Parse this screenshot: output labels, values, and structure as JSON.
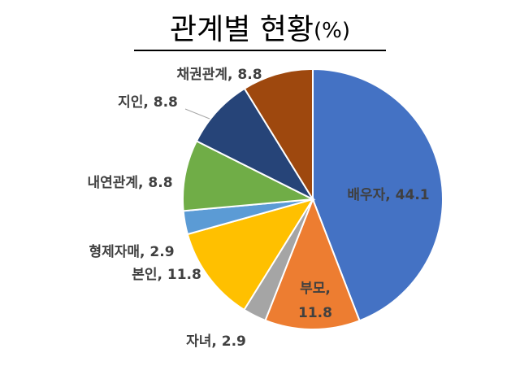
{
  "chart_data": {
    "type": "pie",
    "title": "관계별 현황(%)",
    "categories": [
      "배우자",
      "부모",
      "자녀",
      "본인",
      "형제자매",
      "내연관계",
      "지인",
      "채권관계"
    ],
    "values": [
      44.1,
      11.8,
      2.9,
      11.8,
      2.9,
      8.8,
      8.8,
      8.8
    ],
    "colors": [
      "#4472c4",
      "#ed7d31",
      "#a5a5a5",
      "#ffc000",
      "#5b9bd5",
      "#70ad47",
      "#264478",
      "#9e480e"
    ]
  }
}
